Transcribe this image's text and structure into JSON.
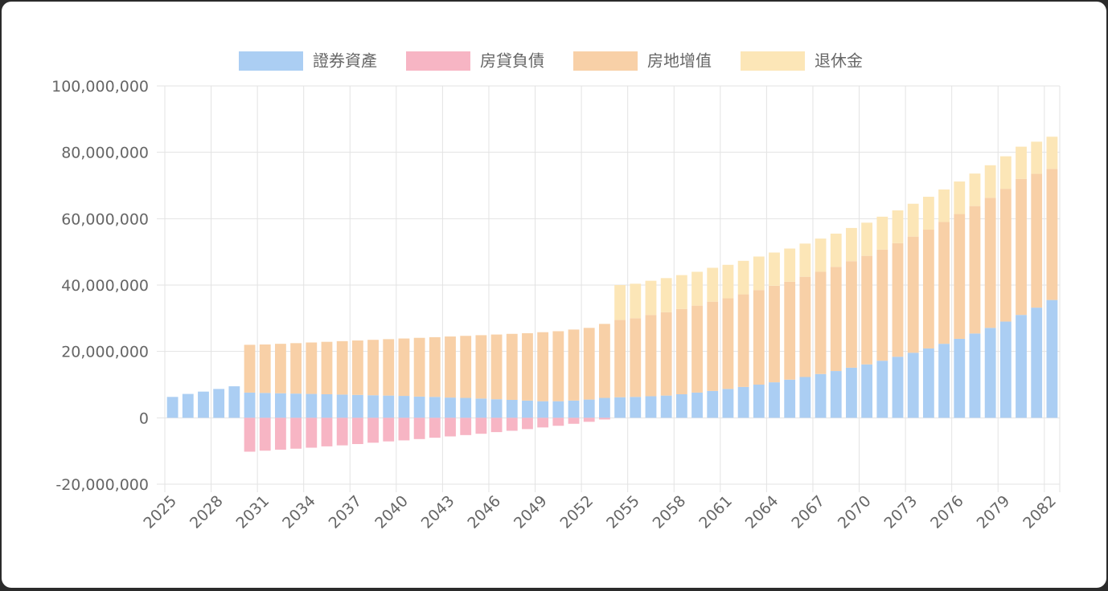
{
  "chart_data": {
    "type": "stacked-bar",
    "categories": [
      "2025",
      null,
      null,
      "2028",
      null,
      null,
      "2031",
      null,
      null,
      "2034",
      null,
      null,
      "2037",
      null,
      null,
      "2040",
      null,
      null,
      "2043",
      null,
      null,
      "2046",
      null,
      null,
      "2049",
      null,
      null,
      "2052",
      null,
      null,
      "2055",
      null,
      null,
      "2058",
      null,
      null,
      "2061",
      null,
      null,
      "2064",
      null,
      null,
      "2067",
      null,
      null,
      "2070",
      null,
      null,
      "2073",
      null,
      null,
      "2076",
      null,
      null,
      "2079",
      null,
      null,
      "2082"
    ],
    "series": [
      {
        "name": "證券資產",
        "color": "#abcef3",
        "stack": "pos",
        "values": [
          6300000.0,
          7200000.0,
          7900000.0,
          8700000.0,
          9500000.0,
          7600000.0,
          7500000.0,
          7400000.0,
          7300000.0,
          7200000.0,
          7100000.0,
          7000000.0,
          6900000.0,
          6800000.0,
          6700000.0,
          6600000.0,
          6400000.0,
          6300000.0,
          6100000.0,
          6000000.0,
          5800000.0,
          5600000.0,
          5400000.0,
          5200000.0,
          5000000.0,
          5000000.0,
          5200000.0,
          5500000.0,
          6000000.0,
          6200000.0,
          6300000.0,
          6500000.0,
          6700000.0,
          7100000.0,
          7600000.0,
          8100000.0,
          8700000.0,
          9300000.0,
          10000000.0,
          10700000.0,
          11500000.0,
          12300000.0,
          13200000.0,
          14100000.0,
          15100000.0,
          16100000.0,
          17200000.0,
          18400000.0,
          19600000.0,
          20900000.0,
          22300000.0,
          23800000.0,
          25400000.0,
          27100000.0,
          29000000.0,
          31000000.0,
          33200000.0,
          35500000.0
        ]
      },
      {
        "name": "房貸負債",
        "color": "#f7b5c4",
        "stack": "neg",
        "values": [
          0,
          0,
          0,
          0,
          0,
          -10200000.0,
          -9900000.0,
          -9600000.0,
          -9300000.0,
          -9000000.0,
          -8600000.0,
          -8300000.0,
          -7900000.0,
          -7500000.0,
          -7100000.0,
          -6800000.0,
          -6400000.0,
          -6000000.0,
          -5600000.0,
          -5200000.0,
          -4800000.0,
          -4300000.0,
          -3900000.0,
          -3400000.0,
          -2900000.0,
          -2400000.0,
          -1800000.0,
          -1200000.0,
          -500000.0,
          0,
          0,
          0,
          0,
          0,
          0,
          0,
          0,
          0,
          0,
          0,
          0,
          0,
          0,
          0,
          0,
          0,
          0,
          0,
          0,
          0,
          0,
          0,
          0,
          0,
          0,
          0,
          0,
          0
        ]
      },
      {
        "name": "房地增值",
        "color": "#f8d0a7",
        "stack": "pos",
        "values": [
          0,
          0,
          0,
          0,
          0,
          14400000.0,
          14600000.0,
          14900000.0,
          15200000.0,
          15500000.0,
          15800000.0,
          16100000.0,
          16400000.0,
          16700000.0,
          17000000.0,
          17300000.0,
          17700000.0,
          18000000.0,
          18400000.0,
          18700000.0,
          19100000.0,
          19500000.0,
          19900000.0,
          20300000.0,
          20800000.0,
          21100000.0,
          21400000.0,
          21600000.0,
          22300000.0,
          23300000.0,
          23700000.0,
          24500000.0,
          25100000.0,
          25700000.0,
          26200000.0,
          26900000.0,
          27300000.0,
          27900000.0,
          28500000.0,
          29100000.0,
          29500000.0,
          30200000.0,
          30800000.0,
          31400000.0,
          32100000.0,
          32700000.0,
          33500000.0,
          34200000.0,
          35000000.0,
          35800000.0,
          36700000.0,
          37600000.0,
          38400000.0,
          39200000.0,
          40000000.0,
          41000000.0,
          40300000.0,
          39500000.0
        ]
      },
      {
        "name": "退休金",
        "color": "#fce6b7",
        "stack": "pos",
        "values": [
          0,
          0,
          0,
          0,
          0,
          0,
          0,
          0,
          0,
          0,
          0,
          0,
          0,
          0,
          0,
          0,
          0,
          0,
          0,
          0,
          0,
          0,
          0,
          0,
          0,
          0,
          0,
          0,
          0,
          10500000.0,
          10400000.0,
          10300000.0,
          10300000.0,
          10200000.0,
          10200000.0,
          10200000.0,
          10100000.0,
          10100000.0,
          10100000.0,
          10000000.0,
          10000000.0,
          10000000.0,
          10000000.0,
          10000000.0,
          10000000.0,
          10000000.0,
          9900000.0,
          9900000.0,
          9900000.0,
          9900000.0,
          9800000.0,
          9800000.0,
          9800000.0,
          9800000.0,
          9800000.0,
          9700000.0,
          9700000.0,
          9700000.0
        ]
      }
    ],
    "ylim": [
      -20000000.0,
      100000000.0
    ],
    "yticks": [
      {
        "value": -20000000.0,
        "label": "-20,000,000"
      },
      0,
      {
        "value": 20000000.0,
        "label": "20,000,000"
      },
      {
        "value": 40000000.0,
        "label": "40,000,000"
      },
      {
        "value": 60000000.0,
        "label": "60,000,000"
      },
      {
        "value": 80000000.0,
        "label": "80,000,000"
      },
      {
        "value": 100000000.0,
        "label": "100,000,000"
      }
    ],
    "grid": true,
    "legend": "top"
  }
}
